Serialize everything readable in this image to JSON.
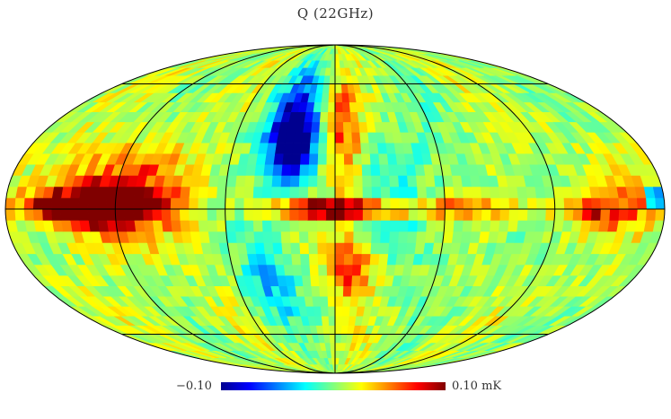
{
  "title": "Q (22GHz)",
  "colorbar": {
    "min_label": "−0.10",
    "max_label": "0.10 mK",
    "min": -0.1,
    "max": 0.1,
    "unit": "mK",
    "colormap": [
      "#00008f",
      "#0000ff",
      "#007fff",
      "#00ffff",
      "#7fff7f",
      "#ffff00",
      "#ff7f00",
      "#ff0000",
      "#800000"
    ]
  },
  "map_data": {
    "projection": "mollweide",
    "background_value": 0.01,
    "graticule_lon_deg": [
      -120,
      -60,
      0,
      60,
      120
    ],
    "graticule_lat_deg": [
      -60,
      0,
      60
    ],
    "features": [
      {
        "name": "galactic-plane-central",
        "lon": 0,
        "lat": 0,
        "sigma_lon": 22,
        "sigma_lat": 2.5,
        "amplitude": 0.15
      },
      {
        "name": "galactic-plane-west",
        "lon": 135,
        "lat": 1,
        "sigma_lon": 22,
        "sigma_lat": 5,
        "amplitude": 0.14
      },
      {
        "name": "galactic-plane-west-wide",
        "lon": 120,
        "lat": 6,
        "sigma_lon": 32,
        "sigma_lat": 14,
        "amplitude": 0.06
      },
      {
        "name": "plane-spur-east",
        "lon": -70,
        "lat": 0,
        "sigma_lon": 30,
        "sigma_lat": 3,
        "amplitude": 0.05
      },
      {
        "name": "plane-spur-far-east",
        "lon": -145,
        "lat": 0,
        "sigma_lon": 15,
        "sigma_lat": 6,
        "amplitude": 0.06
      },
      {
        "name": "north-polar-spur-negative",
        "lon": 25,
        "lat": 30,
        "sigma_lon": 8,
        "sigma_lat": 14,
        "amplitude": -0.13
      },
      {
        "name": "north-polar-spur-negative-wide",
        "lon": 30,
        "lat": 42,
        "sigma_lon": 14,
        "sigma_lat": 22,
        "amplitude": -0.05
      },
      {
        "name": "north-positive-arc",
        "lon": -5,
        "lat": 35,
        "sigma_lon": 8,
        "sigma_lat": 20,
        "amplitude": 0.055
      },
      {
        "name": "south-positive-lobe",
        "lon": -10,
        "lat": -27,
        "sigma_lon": 10,
        "sigma_lat": 12,
        "amplitude": 0.06
      },
      {
        "name": "south-negative-lobe",
        "lon": 40,
        "lat": -32,
        "sigma_lon": 12,
        "sigma_lat": 18,
        "amplitude": -0.045
      },
      {
        "name": "east-negative-spot",
        "lon": -175,
        "lat": 5,
        "sigma_lon": 2.5,
        "sigma_lat": 3,
        "amplitude": -0.14
      },
      {
        "name": "negative-band-right",
        "lon": -40,
        "lat": 5,
        "sigma_lon": 25,
        "sigma_lat": 35,
        "amplitude": -0.02
      }
    ]
  }
}
